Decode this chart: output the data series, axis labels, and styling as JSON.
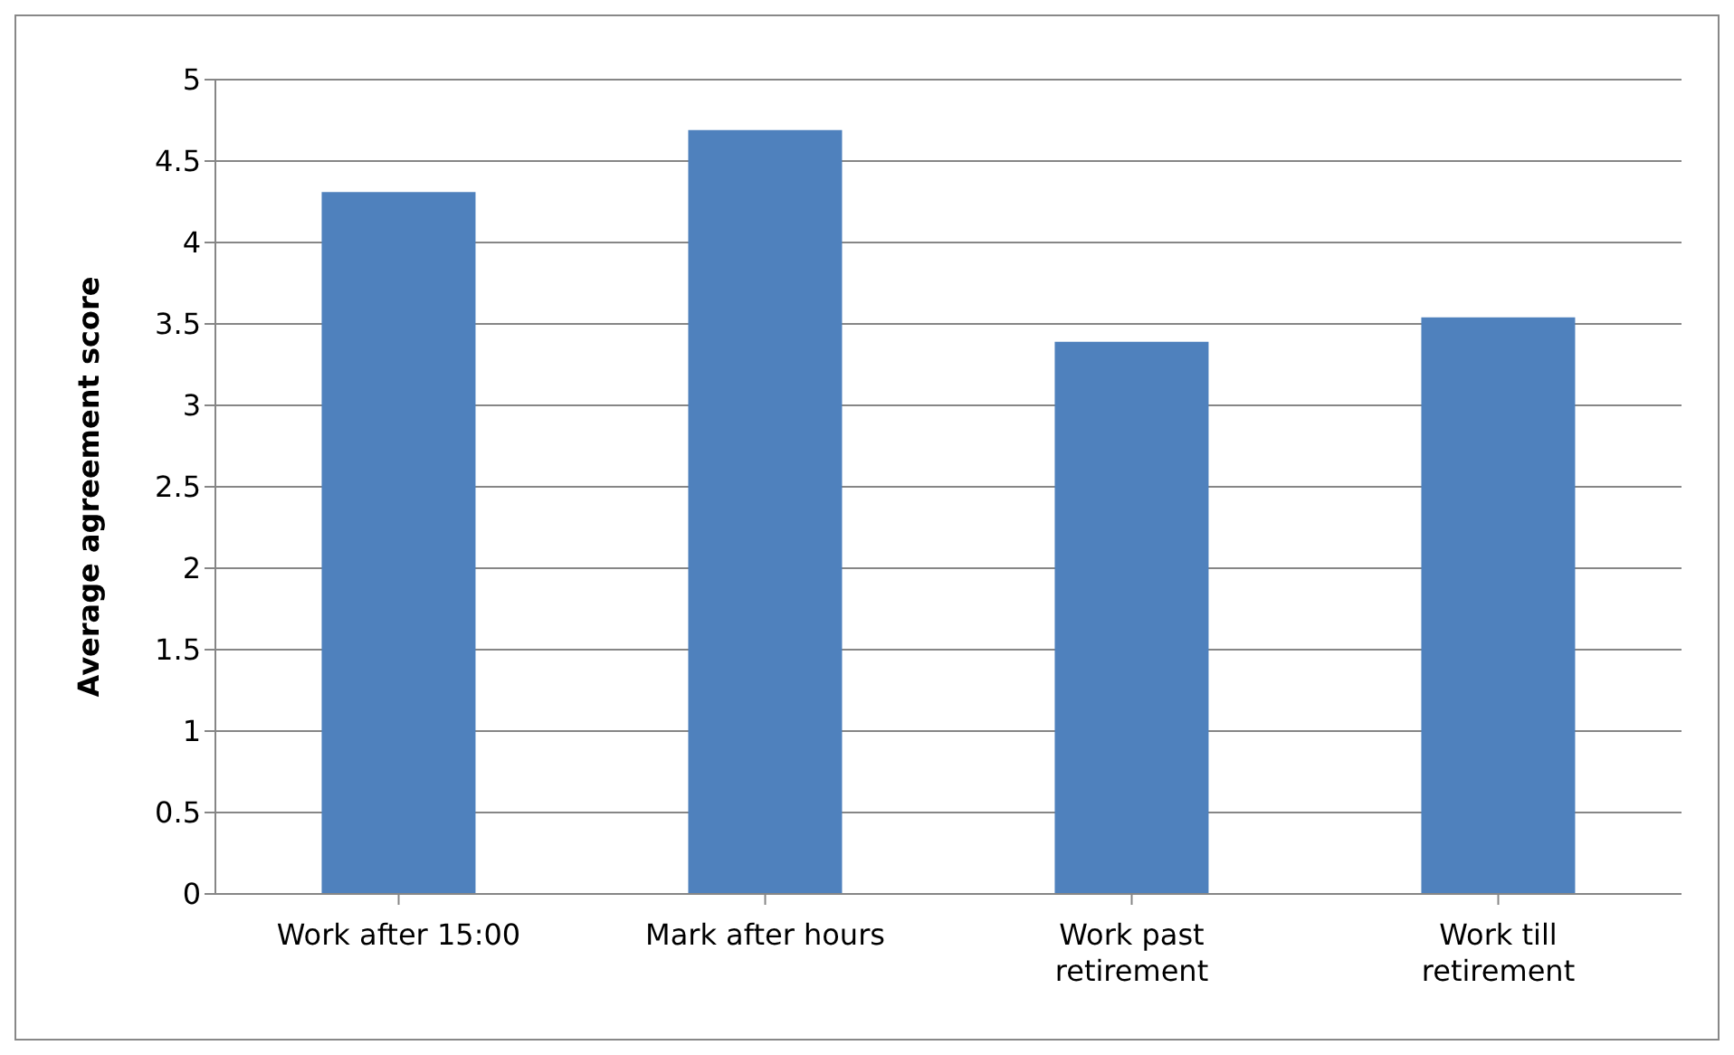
{
  "chart_data": {
    "type": "bar",
    "ylabel": "Average agreement score",
    "categories": [
      "Work after 15:00",
      "Mark after hours",
      "Work past retirement",
      "Work till retirement"
    ],
    "values": [
      4.31,
      4.69,
      3.39,
      3.54
    ],
    "color": "#4f81bd",
    "ylim": [
      0,
      5
    ],
    "yticks": [
      0,
      0.5,
      1,
      1.5,
      2,
      2.5,
      3,
      3.5,
      4,
      4.5,
      5
    ],
    "grid": "y",
    "legend": false
  }
}
